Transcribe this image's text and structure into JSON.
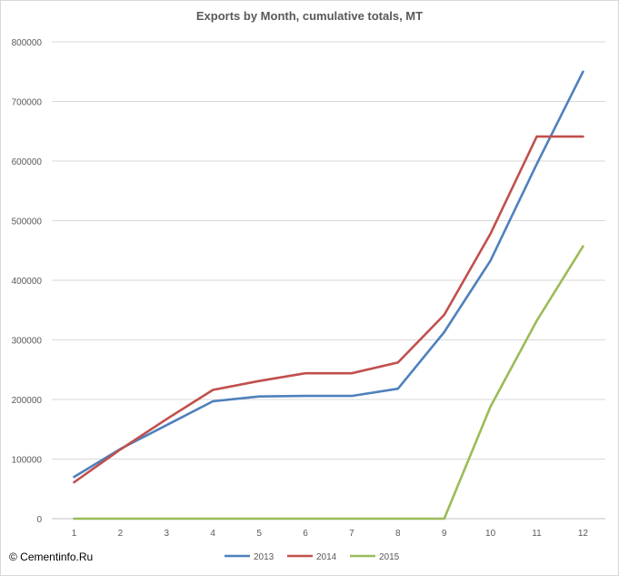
{
  "chart_data": {
    "type": "line",
    "title": "Exports by Month, cumulative totals, MT",
    "xlabel": "",
    "ylabel": "",
    "categories": [
      "1",
      "2",
      "3",
      "4",
      "5",
      "6",
      "7",
      "8",
      "9",
      "10",
      "11",
      "12"
    ],
    "ylim": [
      0,
      800000
    ],
    "yticks": [
      0,
      100000,
      200000,
      300000,
      400000,
      500000,
      600000,
      700000,
      800000
    ],
    "ytick_labels": [
      "0",
      "100000",
      "200000",
      "300000",
      "400000",
      "500000",
      "600000",
      "700000",
      "800000"
    ],
    "grid": true,
    "legend_position": "bottom",
    "series": [
      {
        "name": "2013",
        "color": "#4f81bd",
        "values": [
          70000,
          117000,
          157000,
          197000,
          205000,
          206000,
          206000,
          218000,
          313000,
          433000,
          595000,
          750000
        ]
      },
      {
        "name": "2014",
        "color": "#c0504d",
        "values": [
          61000,
          116000,
          167000,
          216000,
          231000,
          244000,
          244000,
          262000,
          342000,
          478000,
          641000,
          641000
        ]
      },
      {
        "name": "2015",
        "color": "#9bbb59",
        "values": [
          0,
          0,
          0,
          0,
          0,
          0,
          0,
          0,
          0,
          188000,
          332000,
          457000
        ]
      }
    ]
  },
  "footer": {
    "copyright": "© Cementinfo.Ru"
  }
}
